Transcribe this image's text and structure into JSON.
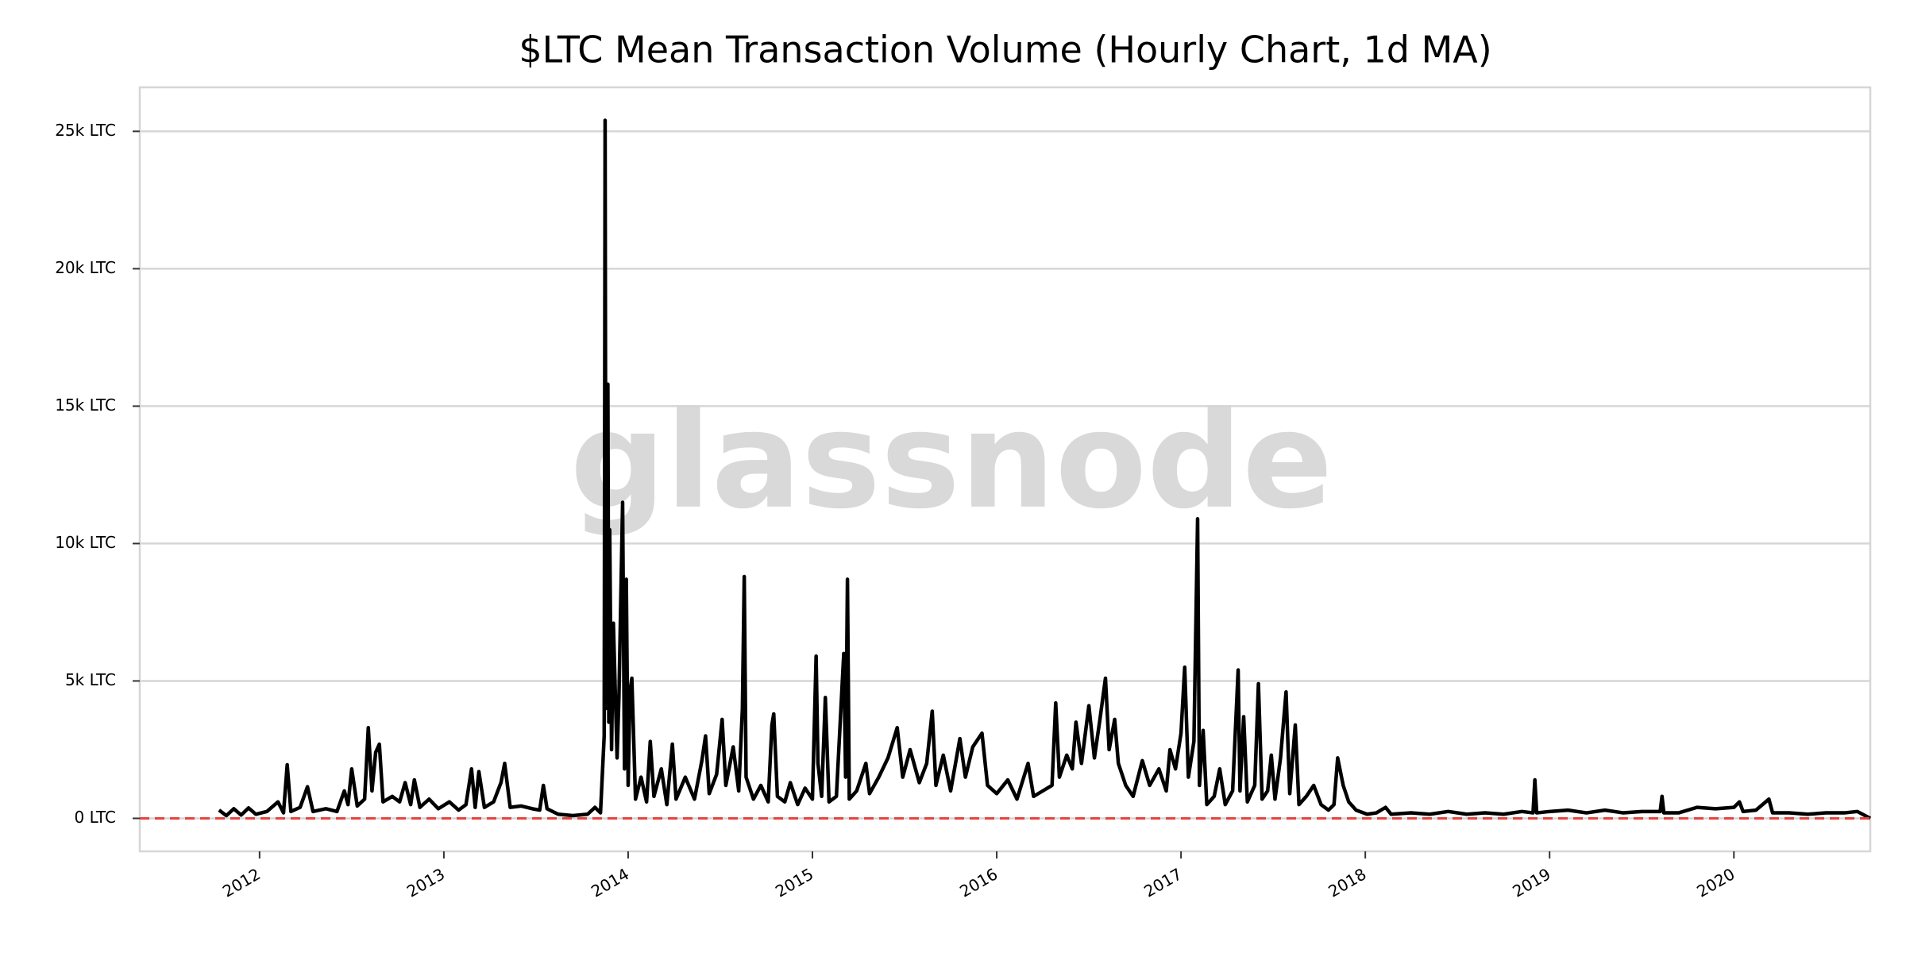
{
  "chart_data": {
    "type": "line",
    "title": "$LTC Mean Transaction Volume (Hourly Chart, 1d MA)",
    "watermark": "glassnode",
    "color": "#000000",
    "grid": true,
    "reference_line": {
      "value": 0,
      "color": "#e5433f"
    },
    "xlim": [
      2011.35,
      2020.74
    ],
    "xticks": [
      2012,
      2013,
      2014,
      2015,
      2016,
      2017,
      2018,
      2019,
      2020
    ],
    "ylim": [
      -1200,
      26600
    ],
    "yticks": [
      {
        "value": 0,
        "label": "0 LTC"
      },
      {
        "value": 5000,
        "label": "5k LTC"
      },
      {
        "value": 10000,
        "label": "10k LTC"
      },
      {
        "value": 15000,
        "label": "15k LTC"
      },
      {
        "value": 20000,
        "label": "20k LTC"
      },
      {
        "value": 25000,
        "label": "25k LTC"
      }
    ],
    "x": [
      2011.78,
      2011.82,
      2011.86,
      2011.9,
      2011.94,
      2011.98,
      2012.04,
      2012.1,
      2012.13,
      2012.15,
      2012.17,
      2012.22,
      2012.26,
      2012.29,
      2012.36,
      2012.42,
      2012.46,
      2012.48,
      2012.5,
      2012.53,
      2012.57,
      2012.59,
      2012.61,
      2012.63,
      2012.65,
      2012.67,
      2012.72,
      2012.76,
      2012.79,
      2012.82,
      2012.84,
      2012.87,
      2012.92,
      2012.97,
      2013.03,
      2013.08,
      2013.12,
      2013.15,
      2013.17,
      2013.19,
      2013.22,
      2013.27,
      2013.31,
      2013.33,
      2013.36,
      2013.42,
      2013.48,
      2013.52,
      2013.54,
      2013.56,
      2013.62,
      2013.7,
      2013.78,
      2013.82,
      2013.85,
      2013.87,
      2013.875,
      2013.88,
      2013.89,
      2013.895,
      2013.9,
      2013.91,
      2013.92,
      2013.94,
      2013.95,
      2013.97,
      2013.98,
      2013.99,
      2014.0,
      2014.01,
      2014.02,
      2014.04,
      2014.07,
      2014.1,
      2014.12,
      2014.14,
      2014.18,
      2014.21,
      2014.24,
      2014.26,
      2014.31,
      2014.36,
      2014.4,
      2014.42,
      2014.44,
      2014.48,
      2014.51,
      2014.53,
      2014.57,
      2014.6,
      2014.62,
      2014.63,
      2014.64,
      2014.68,
      2014.72,
      2014.76,
      2014.78,
      2014.79,
      2014.81,
      2014.85,
      2014.88,
      2014.92,
      2014.96,
      2015.0,
      2015.02,
      2015.03,
      2015.05,
      2015.07,
      2015.09,
      2015.13,
      2015.17,
      2015.18,
      2015.19,
      2015.2,
      2015.24,
      2015.29,
      2015.31,
      2015.36,
      2015.41,
      2015.46,
      2015.49,
      2015.53,
      2015.58,
      2015.62,
      2015.65,
      2015.67,
      2015.71,
      2015.75,
      2015.8,
      2015.83,
      2015.87,
      2015.92,
      2015.95,
      2016.0,
      2016.06,
      2016.11,
      2016.17,
      2016.2,
      2016.25,
      2016.3,
      2016.32,
      2016.34,
      2016.38,
      2016.41,
      2016.43,
      2016.46,
      2016.5,
      2016.53,
      2016.56,
      2016.59,
      2016.61,
      2016.64,
      2016.66,
      2016.7,
      2016.74,
      2016.79,
      2016.83,
      2016.88,
      2016.92,
      2016.94,
      2016.97,
      2017.0,
      2017.02,
      2017.04,
      2017.07,
      2017.09,
      2017.1,
      2017.12,
      2017.14,
      2017.18,
      2017.21,
      2017.24,
      2017.28,
      2017.31,
      2017.32,
      2017.34,
      2017.36,
      2017.4,
      2017.42,
      2017.44,
      2017.47,
      2017.49,
      2017.51,
      2017.54,
      2017.57,
      2017.59,
      2017.62,
      2017.64,
      2017.68,
      2017.72,
      2017.76,
      2017.8,
      2017.83,
      2017.85,
      2017.88,
      2017.91,
      2017.95,
      2018.01,
      2018.06,
      2018.11,
      2018.14,
      2018.25,
      2018.35,
      2018.45,
      2018.55,
      2018.65,
      2018.75,
      2018.85,
      2018.91,
      2018.92,
      2018.93,
      2019.0,
      2019.1,
      2019.2,
      2019.3,
      2019.4,
      2019.5,
      2019.6,
      2019.61,
      2019.62,
      2019.7,
      2019.8,
      2019.9,
      2020.0,
      2020.03,
      2020.05,
      2020.12,
      2020.19,
      2020.21,
      2020.3,
      2020.4,
      2020.5,
      2020.6,
      2020.67,
      2020.74
    ],
    "values": [
      300,
      100,
      350,
      120,
      380,
      150,
      250,
      600,
      200,
      1950,
      250,
      400,
      1150,
      250,
      350,
      250,
      1000,
      500,
      1800,
      450,
      700,
      3300,
      1000,
      2400,
      2700,
      600,
      800,
      600,
      1300,
      500,
      1400,
      400,
      700,
      350,
      600,
      300,
      500,
      1800,
      400,
      1700,
      400,
      600,
      1300,
      2000,
      400,
      450,
      350,
      300,
      1200,
      350,
      150,
      100,
      150,
      400,
      200,
      3000,
      25400,
      4000,
      15800,
      3500,
      10500,
      2500,
      7100,
      2200,
      4400,
      11500,
      1800,
      8700,
      1200,
      4600,
      5100,
      700,
      1500,
      600,
      2800,
      800,
      1800,
      500,
      2700,
      700,
      1500,
      700,
      2100,
      3000,
      900,
      1600,
      3600,
      1200,
      2600,
      1000,
      4000,
      8800,
      1500,
      700,
      1200,
      600,
      3400,
      3800,
      800,
      600,
      1300,
      500,
      1100,
      700,
      5900,
      2000,
      800,
      4400,
      600,
      800,
      6000,
      1500,
      8700,
      700,
      1000,
      2000,
      900,
      1500,
      2200,
      3300,
      1500,
      2500,
      1300,
      2000,
      3900,
      1200,
      2300,
      1000,
      2900,
      1500,
      2600,
      3100,
      1200,
      900,
      1400,
      700,
      2000,
      800,
      1000,
      1200,
      4200,
      1500,
      2300,
      1800,
      3500,
      2000,
      4100,
      2200,
      3600,
      5100,
      2500,
      3600,
      2000,
      1200,
      800,
      2100,
      1200,
      1800,
      1000,
      2500,
      1800,
      3100,
      5500,
      1500,
      2800,
      10900,
      1200,
      3200,
      500,
      800,
      1800,
      500,
      1000,
      5400,
      1000,
      3700,
      600,
      1200,
      4900,
      700,
      1000,
      2300,
      700,
      2200,
      4600,
      900,
      3400,
      500,
      800,
      1200,
      500,
      300,
      500,
      2200,
      1200,
      600,
      300,
      150,
      200,
      400,
      150,
      200,
      150,
      250,
      150,
      200,
      150,
      250,
      200,
      1400,
      200,
      250,
      300,
      200,
      300,
      200,
      250,
      250,
      800,
      200,
      200,
      400,
      350,
      400,
      600,
      250,
      300,
      700,
      200,
      200,
      150,
      200,
      200,
      250,
      0
    ]
  }
}
